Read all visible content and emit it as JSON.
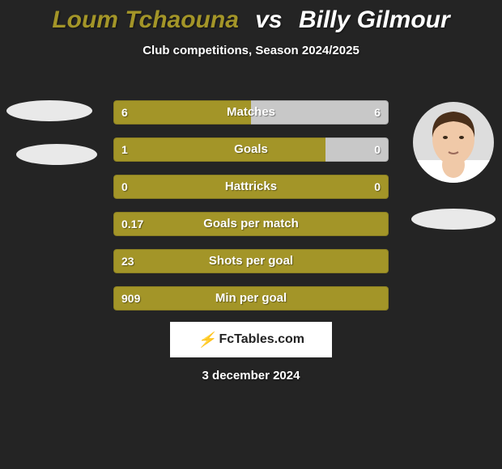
{
  "background_color": "#242424",
  "title": {
    "player1": "Loum Tchaouna",
    "vs": "vs",
    "player2": "Billy Gilmour",
    "player1_color": "#a39528",
    "player2_color": "#ffffff",
    "fontsize": 30
  },
  "subtitle": "Club competitions, Season 2024/2025",
  "colors": {
    "left_bar": "#a39528",
    "right_bar": "#c8c8c8",
    "text": "#ffffff"
  },
  "bars": [
    {
      "label": "Matches",
      "left_val": "6",
      "right_val": "6",
      "left_pct": 50,
      "right_pct": 50
    },
    {
      "label": "Goals",
      "left_val": "1",
      "right_val": "0",
      "left_pct": 77,
      "right_pct": 23
    },
    {
      "label": "Hattricks",
      "left_val": "0",
      "right_val": "0",
      "left_pct": 100,
      "right_pct": 0
    },
    {
      "label": "Goals per match",
      "left_val": "0.17",
      "right_val": "",
      "left_pct": 100,
      "right_pct": 0
    },
    {
      "label": "Shots per goal",
      "left_val": "23",
      "right_val": "",
      "left_pct": 100,
      "right_pct": 0
    },
    {
      "label": "Min per goal",
      "left_val": "909",
      "right_val": "",
      "left_pct": 100,
      "right_pct": 0
    }
  ],
  "logo_text": "FcTables.com",
  "date": "3 december 2024",
  "avatar_right": {
    "skin": "#f0c9a8",
    "hair": "#4a2f1a",
    "shirt": "#ffffff"
  }
}
